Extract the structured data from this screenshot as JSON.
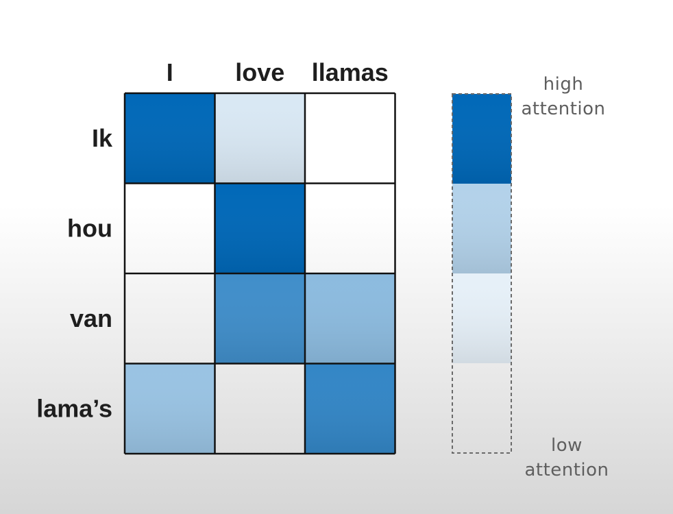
{
  "chart_data": {
    "type": "heatmap",
    "columns": [
      "I",
      "love",
      "llamas"
    ],
    "rows": [
      "Ik",
      "hou",
      "van",
      "lama’s"
    ],
    "values": [
      [
        1.0,
        0.15,
        0.0
      ],
      [
        0.0,
        1.0,
        0.0
      ],
      [
        0.0,
        0.75,
        0.45
      ],
      [
        0.4,
        0.0,
        0.8
      ]
    ],
    "colorscale": {
      "low": "#ffffff",
      "high": "#0068b8",
      "steps": [
        1.0,
        0.3,
        0.1,
        0.0
      ],
      "high_label": [
        "high",
        "attention"
      ],
      "low_label": [
        "low",
        "attention"
      ]
    },
    "grid_color": "#111111",
    "legend_border_color": "#6a6a6a"
  }
}
